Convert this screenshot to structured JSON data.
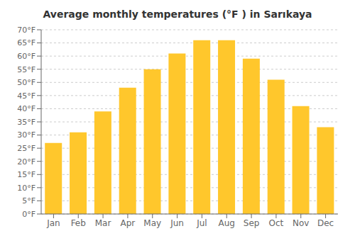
{
  "chart_data": {
    "type": "bar",
    "title": "Average monthly temperatures (°F ) in Sarıkaya",
    "categories": [
      "Jan",
      "Feb",
      "Mar",
      "Apr",
      "May",
      "Jun",
      "Jul",
      "Aug",
      "Sep",
      "Oct",
      "Nov",
      "Dec"
    ],
    "values": [
      27,
      31,
      39,
      48,
      55,
      61,
      66,
      66,
      59,
      51,
      41,
      33
    ],
    "color": "#FFC72C",
    "ylim": [
      0,
      70
    ],
    "yticks": [
      {
        "value": 0,
        "label": "0°F"
      },
      {
        "value": 5,
        "label": "5°F"
      },
      {
        "value": 10,
        "label": "10°F"
      },
      {
        "value": 15,
        "label": "15°F"
      },
      {
        "value": 20,
        "label": "20°F"
      },
      {
        "value": 25,
        "label": "25°F"
      },
      {
        "value": 30,
        "label": "30°F"
      },
      {
        "value": 35,
        "label": "35°F"
      },
      {
        "value": 40,
        "label": "40°F"
      },
      {
        "value": 45,
        "label": "45°F"
      },
      {
        "value": 50,
        "label": "50°F"
      },
      {
        "value": 55,
        "label": "55°F"
      },
      {
        "value": 60,
        "label": "60°F"
      },
      {
        "value": 65,
        "label": "65°F"
      },
      {
        "value": 70,
        "label": "70°F"
      }
    ],
    "grid": true
  }
}
